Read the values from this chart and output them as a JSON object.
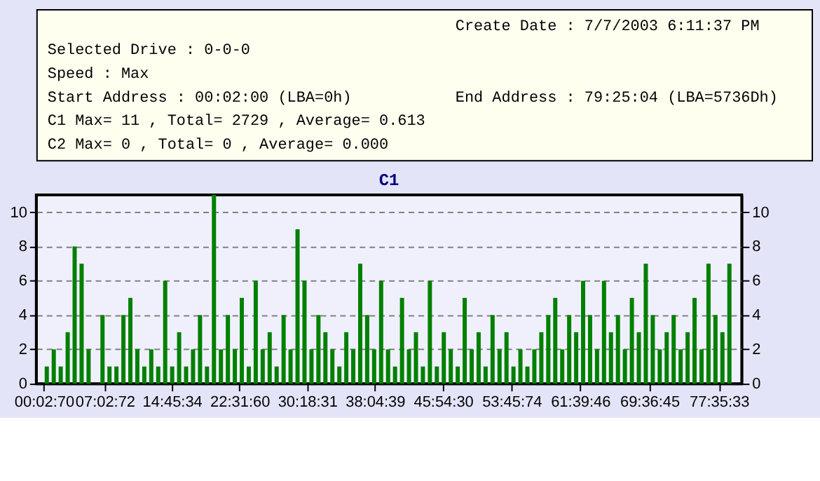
{
  "chart_data": {
    "type": "bar",
    "title": "C1",
    "annotations": [
      "Create Date : 7/7/2003 6:11:37 PM",
      "Selected Drive : 0-0-0",
      "Speed : Max",
      "Start Address : 00:02:00 (LBA=0h)",
      "End Address : 79:25:04 (LBA=5736Dh)",
      "C1 Max= 11 , Total= 2729 , Average= 0.613",
      "C2 Max= 0 , Total= 0 , Average= 0.000"
    ],
    "x": [
      0.4,
      1.2,
      2.0,
      2.8,
      3.6,
      4.4,
      5.2,
      6.0,
      6.8,
      7.6,
      8.4,
      9.2,
      10.0,
      10.8,
      11.6,
      12.4,
      13.2,
      14.0,
      14.8,
      15.6,
      16.4,
      17.2,
      18.0,
      18.8,
      19.6,
      20.4,
      21.2,
      22.0,
      22.8,
      23.6,
      24.4,
      25.2,
      26.0,
      26.8,
      27.6,
      28.4,
      29.2,
      30.0,
      30.8,
      31.6,
      32.4,
      33.2,
      34.0,
      34.8,
      35.6,
      36.4,
      37.2,
      38.0,
      38.8,
      39.6,
      40.4,
      41.2,
      42.0,
      42.8,
      43.6,
      44.4,
      45.2,
      46.0,
      46.8,
      47.6,
      48.4,
      49.2,
      50.0,
      50.8,
      51.6,
      52.4,
      53.2,
      54.0,
      54.8,
      55.6,
      56.4,
      57.2,
      58.0,
      58.8,
      59.6,
      60.4,
      61.2,
      62.0,
      62.8,
      63.6,
      64.4,
      65.2,
      66.0,
      66.8,
      67.6,
      68.4,
      69.2,
      70.0,
      70.8,
      71.6,
      72.4,
      73.2,
      74.0,
      74.8,
      75.6,
      76.4,
      77.2,
      78.0,
      78.8
    ],
    "values": [
      1,
      2,
      1,
      3,
      8,
      7,
      2,
      0,
      4,
      1,
      1,
      4,
      5,
      2,
      1,
      2,
      1,
      6,
      1,
      3,
      1,
      2,
      4,
      1,
      11,
      2,
      4,
      2,
      5,
      1,
      6,
      2,
      3,
      1,
      4,
      2,
      9,
      6,
      2,
      4,
      3,
      2,
      1,
      3,
      2,
      7,
      4,
      2,
      6,
      2,
      1,
      5,
      2,
      3,
      1,
      6,
      1,
      3,
      2,
      1,
      5,
      2,
      3,
      1,
      4,
      2,
      3,
      1,
      2,
      1,
      2,
      3,
      4,
      5,
      2,
      4,
      3,
      6,
      4,
      2,
      6,
      3,
      4,
      2,
      5,
      3,
      7,
      4,
      2,
      3,
      4,
      2,
      3,
      5,
      2,
      7,
      4,
      3,
      7
    ],
    "color": "#008000",
    "xlim": [
      0,
      79.42
    ],
    "xticks": [
      {
        "value": 0.0528,
        "label": "00:02:70"
      },
      {
        "value": 7.0533,
        "label": "07:02:72"
      },
      {
        "value": 14.7594,
        "label": "14:45:34"
      },
      {
        "value": 22.5333,
        "label": "22:31:60"
      },
      {
        "value": 30.3086,
        "label": "30:18:31"
      },
      {
        "value": 38.0775,
        "label": "38:04:39"
      },
      {
        "value": 45.9083,
        "label": "45:54:30"
      },
      {
        "value": 53.7706,
        "label": "53:45:74"
      },
      {
        "value": 61.6628,
        "label": "61:39:46"
      },
      {
        "value": 69.6125,
        "label": "69:36:45"
      },
      {
        "value": 77.5925,
        "label": "77:35:33"
      }
    ],
    "ylim": [
      0,
      11
    ],
    "yticks": [
      0,
      2,
      4,
      6,
      8,
      10
    ],
    "y2lim": [
      0,
      11
    ],
    "y2ticks": [
      0,
      2,
      4,
      6,
      8,
      10
    ],
    "grid": "y"
  }
}
